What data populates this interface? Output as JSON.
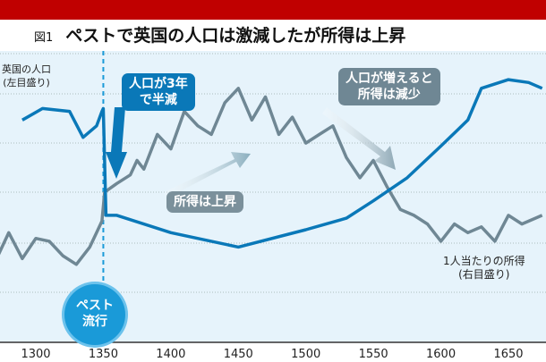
{
  "title": {
    "figure": "図1",
    "text": "ペストで英国の人口は激減したが所得は上昇"
  },
  "chart_data": {
    "type": "line",
    "title": "ペストで英国の人口は激減したが所得は上昇",
    "xlabel": "",
    "ylabel": "",
    "xlim": [
      1270,
      1680
    ],
    "ylim": [
      0,
      100
    ],
    "xticks": [
      1300,
      1350,
      1400,
      1450,
      1500,
      1550,
      1600,
      1650
    ],
    "grid": true,
    "series": [
      {
        "name": "英国の人口",
        "axis_note": "(左目盛り)",
        "color": "#0a78b8",
        "x": [
          1290,
          1305,
          1325,
          1335,
          1345,
          1349,
          1350,
          1352,
          1360,
          1400,
          1450,
          1500,
          1530,
          1550,
          1575,
          1600,
          1620,
          1630,
          1650,
          1665,
          1675
        ],
        "values": [
          77,
          81,
          80,
          71,
          75,
          80,
          81,
          44,
          44,
          38,
          33,
          39,
          43,
          49,
          57,
          68,
          77,
          88,
          91,
          90,
          88
        ]
      },
      {
        "name": "1人当たりの所得",
        "axis_note": "(右目盛り)",
        "color": "#6f8794",
        "x": [
          1270,
          1280,
          1290,
          1300,
          1310,
          1320,
          1330,
          1340,
          1345,
          1349,
          1351,
          1360,
          1370,
          1375,
          1380,
          1390,
          1400,
          1410,
          1420,
          1430,
          1440,
          1450,
          1460,
          1470,
          1480,
          1490,
          1500,
          1510,
          1520,
          1530,
          1540,
          1550,
          1560,
          1570,
          1580,
          1590,
          1600,
          1610,
          1620,
          1630,
          1640,
          1650,
          1660,
          1675
        ],
        "values": [
          28,
          38,
          29,
          36,
          35,
          30,
          27,
          33,
          38,
          42,
          52,
          55,
          58,
          63,
          60,
          72,
          67,
          80,
          75,
          72,
          83,
          88,
          77,
          85,
          72,
          78,
          69,
          72,
          75,
          64,
          57,
          63,
          54,
          46,
          44,
          41,
          35,
          41,
          38,
          40,
          35,
          44,
          41,
          44
        ]
      }
    ],
    "annotations": [
      {
        "text": "ペスト流行",
        "x": 1350
      },
      {
        "text": "人口が3年で半減"
      },
      {
        "text": "所得は上昇"
      },
      {
        "text": "人口が増えると所得は減少"
      }
    ]
  },
  "labels": {
    "pop_name": "英国の人口",
    "pop_axis": "(左目盛り)",
    "inc_name": "1人当たりの所得",
    "inc_axis": "(右目盛り)",
    "plague_1": "ペスト",
    "plague_2": "流行",
    "c1_1": "人口が3年",
    "c1_2": "で半減",
    "c2": "所得は上昇",
    "c3_1": "人口が増えると",
    "c3_2": "所得は減少"
  }
}
